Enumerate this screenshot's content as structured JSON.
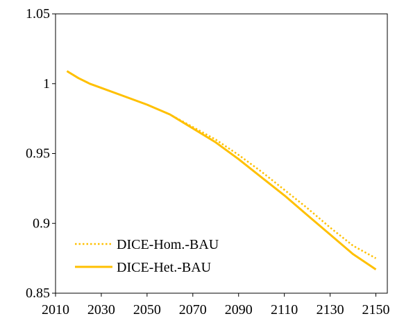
{
  "chart_data": {
    "type": "line",
    "title": "",
    "xlabel": "",
    "ylabel": "",
    "xlim": [
      2010,
      2155
    ],
    "ylim": [
      0.85,
      1.05
    ],
    "x_ticks": [
      2010,
      2030,
      2050,
      2070,
      2090,
      2110,
      2130,
      2150
    ],
    "y_ticks": [
      0.85,
      0.9,
      0.95,
      1,
      1.05
    ],
    "x_tick_labels": [
      "2010",
      "2030",
      "2050",
      "2070",
      "2090",
      "2110",
      "2130",
      "2150"
    ],
    "y_tick_labels": [
      "0.85",
      "0.9",
      "0.95",
      "1",
      "1.05"
    ],
    "grid": false,
    "legend_position": "bottom-left",
    "series": [
      {
        "name": "DICE-Hom.-BAU",
        "color": "#FFC000",
        "style": "dotted",
        "x": [
          2015,
          2020,
          2025,
          2030,
          2040,
          2050,
          2060,
          2070,
          2080,
          2090,
          2100,
          2110,
          2120,
          2130,
          2140,
          2150
        ],
        "y": [
          1.009,
          1.004,
          1.0,
          0.997,
          0.991,
          0.985,
          0.978,
          0.969,
          0.96,
          0.949,
          0.937,
          0.924,
          0.911,
          0.897,
          0.884,
          0.875
        ]
      },
      {
        "name": "DICE-Het.-BAU",
        "color": "#FFC000",
        "style": "solid",
        "x": [
          2015,
          2020,
          2025,
          2030,
          2040,
          2050,
          2060,
          2070,
          2080,
          2090,
          2100,
          2110,
          2120,
          2130,
          2140,
          2150
        ],
        "y": [
          1.009,
          1.004,
          1.0,
          0.997,
          0.991,
          0.985,
          0.978,
          0.968,
          0.958,
          0.946,
          0.933,
          0.92,
          0.906,
          0.892,
          0.878,
          0.867
        ]
      }
    ]
  }
}
